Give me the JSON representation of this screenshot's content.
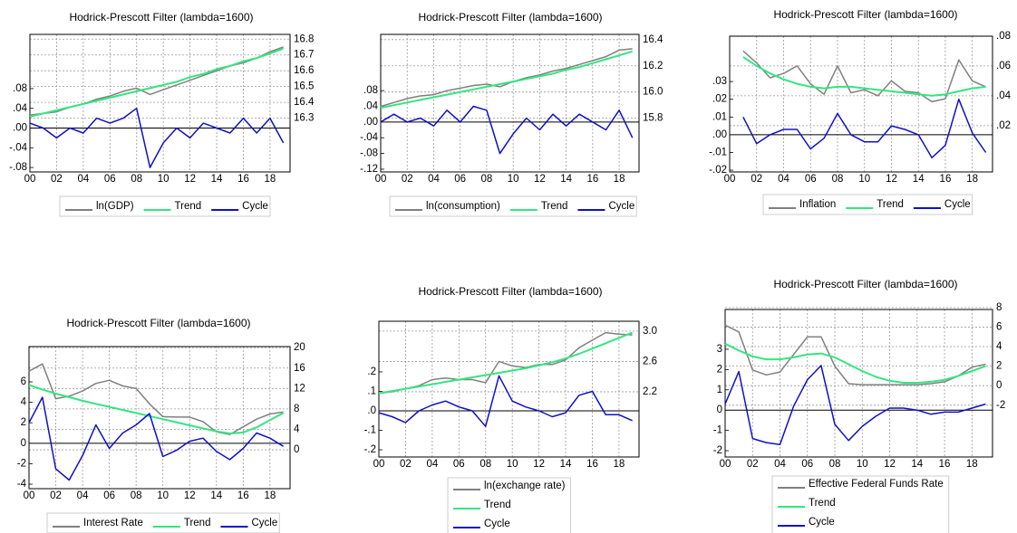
{
  "chart_data": [
    {
      "type": "line",
      "title": "Hodrick-Prescott Filter (lambda=1600)",
      "x": [
        0,
        1,
        2,
        3,
        4,
        5,
        6,
        7,
        8,
        9,
        10,
        11,
        12,
        13,
        14,
        15,
        16,
        17,
        18,
        19
      ],
      "xlim": [
        0,
        19.5
      ],
      "xticks": [
        {
          "value": 0,
          "label": "00"
        },
        {
          "value": 2,
          "label": "02"
        },
        {
          "value": 4,
          "label": "04"
        },
        {
          "value": 6,
          "label": "06"
        },
        {
          "value": 8,
          "label": "08"
        },
        {
          "value": 10,
          "label": "10"
        },
        {
          "value": 12,
          "label": "12"
        },
        {
          "value": 14,
          "label": "14"
        },
        {
          "value": 16,
          "label": "16"
        },
        {
          "value": 18,
          "label": "18"
        }
      ],
      "ylim": [
        -0.089,
        0.19
      ],
      "yticks": [
        {
          "value": 0.08,
          "label": ".08"
        },
        {
          "value": 0.04,
          "label": ".04"
        },
        {
          "value": 0,
          "label": ".00"
        },
        {
          "value": -0.04,
          "label": "-.04"
        },
        {
          "value": -0.08,
          "label": "-.08"
        }
      ],
      "y2lim": [
        15.96,
        16.83
      ],
      "y2ticks": [
        16.8,
        16.7,
        16.6,
        16.5,
        16.4,
        16.3
      ],
      "series": [
        {
          "name": "ln(GDP)",
          "color": "#808080",
          "axis": "y2",
          "values": [
            16.32,
            16.33,
            16.34,
            16.37,
            16.39,
            16.42,
            16.44,
            16.47,
            16.49,
            16.45,
            16.48,
            16.51,
            16.54,
            16.57,
            16.6,
            16.63,
            16.65,
            16.68,
            16.72,
            16.75
          ]
        },
        {
          "name": "Trend",
          "color": "#33e680",
          "axis": "y2",
          "values": [
            16.31,
            16.33,
            16.35,
            16.37,
            16.39,
            16.41,
            16.43,
            16.45,
            16.47,
            16.49,
            16.51,
            16.53,
            16.56,
            16.58,
            16.61,
            16.63,
            16.66,
            16.68,
            16.71,
            16.74
          ]
        },
        {
          "name": "Cycle",
          "color": "#1010c8",
          "axis": "y",
          "values": [
            0.01,
            0,
            -0.02,
            0,
            -0.01,
            0.02,
            0.01,
            0.02,
            0.04,
            -0.08,
            -0.03,
            0,
            -0.02,
            0.01,
            0,
            -0.01,
            0.02,
            -0.01,
            0.02,
            -0.03
          ]
        }
      ]
    },
    {
      "type": "line",
      "title": "Hodrick-Prescott Filter (lambda=1600)",
      "x": [
        0,
        1,
        2,
        3,
        4,
        5,
        6,
        7,
        8,
        9,
        10,
        11,
        12,
        13,
        14,
        15,
        16,
        17,
        18,
        19
      ],
      "xlim": [
        0,
        19.5
      ],
      "xticks": [
        {
          "value": 0,
          "label": "00"
        },
        {
          "value": 2,
          "label": "02"
        },
        {
          "value": 4,
          "label": "04"
        },
        {
          "value": 6,
          "label": "06"
        },
        {
          "value": 8,
          "label": "08"
        },
        {
          "value": 10,
          "label": "10"
        },
        {
          "value": 12,
          "label": "12"
        },
        {
          "value": 14,
          "label": "14"
        },
        {
          "value": 16,
          "label": "16"
        },
        {
          "value": 18,
          "label": "18"
        }
      ],
      "ylim": [
        -0.127,
        0.223
      ],
      "yticks": [
        {
          "value": 0.08,
          "label": ".08"
        },
        {
          "value": 0.04,
          "label": ".04"
        },
        {
          "value": 0,
          "label": ".00"
        },
        {
          "value": -0.04,
          "label": "-.04"
        },
        {
          "value": -0.08,
          "label": "-.08"
        },
        {
          "value": -0.12,
          "label": "-.12"
        }
      ],
      "y2lim": [
        15.39,
        16.44
      ],
      "y2ticks": [
        16.4,
        16.2,
        {
          "value": 16,
          "label": "16.0"
        },
        15.8
      ],
      "series": [
        {
          "name": "ln(consumption)",
          "color": "#808080",
          "axis": "y2",
          "values": [
            15.89,
            15.92,
            15.95,
            15.97,
            15.98,
            16.01,
            16.03,
            16.05,
            16.06,
            16.04,
            16.08,
            16.11,
            16.13,
            16.16,
            16.18,
            16.21,
            16.24,
            16.27,
            16.32,
            16.33
          ]
        },
        {
          "name": "Trend",
          "color": "#33e680",
          "axis": "y2",
          "values": [
            15.88,
            15.9,
            15.92,
            15.94,
            15.96,
            15.98,
            16,
            16.02,
            16.04,
            16.06,
            16.08,
            16.1,
            16.12,
            16.14,
            16.17,
            16.19,
            16.22,
            16.25,
            16.28,
            16.31
          ]
        },
        {
          "name": "Cycle",
          "color": "#1010c8",
          "axis": "y",
          "values": [
            0,
            0.02,
            0,
            0.01,
            -0.01,
            0.03,
            0,
            0.04,
            0.03,
            -0.08,
            -0.03,
            0.01,
            -0.02,
            0.02,
            -0.01,
            0.02,
            0,
            -0.02,
            0.03,
            -0.04
          ]
        }
      ]
    },
    {
      "type": "line",
      "title": "Hodrick-Prescott Filter (lambda=1600)",
      "x": [
        0,
        1,
        2,
        3,
        4,
        5,
        6,
        7,
        8,
        9,
        10,
        11,
        12,
        13,
        14,
        15,
        16,
        17,
        18,
        19
      ],
      "xlim": [
        0,
        19.5
      ],
      "xticks": [
        {
          "value": 0,
          "label": "00"
        },
        {
          "value": 2,
          "label": "02"
        },
        {
          "value": 4,
          "label": "04"
        },
        {
          "value": 6,
          "label": "06"
        },
        {
          "value": 8,
          "label": "08"
        },
        {
          "value": 10,
          "label": "10"
        },
        {
          "value": 12,
          "label": "12"
        },
        {
          "value": 14,
          "label": "14"
        },
        {
          "value": 16,
          "label": "16"
        },
        {
          "value": 18,
          "label": "18"
        }
      ],
      "ylim": [
        -0.021,
        0.0556
      ],
      "yticks": [
        {
          "value": 0.03,
          "label": ".03"
        },
        {
          "value": 0.02,
          "label": ".02"
        },
        {
          "value": 0.01,
          "label": ".01"
        },
        {
          "value": 0,
          "label": ".00"
        },
        {
          "value": -0.01,
          "label": "-.01"
        },
        {
          "value": -0.02,
          "label": "-.02"
        }
      ],
      "y2lim": [
        -0.011,
        0.0799
      ],
      "y2ticks": [
        {
          "value": 0.08,
          "label": ".08"
        },
        {
          "value": 0.06,
          "label": ".06"
        },
        {
          "value": 0.04,
          "label": ".04"
        },
        {
          "value": 0.02,
          "label": ".02"
        }
      ],
      "series": [
        {
          "name": "Inflation",
          "color": "#808080",
          "axis": "y2",
          "values": [
            null,
            0.07,
            0.062,
            0.052,
            0.055,
            0.06,
            0.048,
            0.041,
            0.06,
            0.042,
            0.044,
            0.04,
            0.05,
            0.043,
            0.042,
            0.036,
            0.038,
            0.064,
            0.05,
            0.046
          ]
        },
        {
          "name": "Trend",
          "color": "#33e680",
          "axis": "y2",
          "values": [
            null,
            0.066,
            0.06,
            0.055,
            0.051,
            0.048,
            0.046,
            0.045,
            0.046,
            0.046,
            0.045,
            0.044,
            0.043,
            0.042,
            0.041,
            0.04,
            0.041,
            0.043,
            0.045,
            0.046
          ]
        },
        {
          "name": "Cycle",
          "color": "#1010c8",
          "axis": "y",
          "values": [
            null,
            0.01,
            -0.005,
            0,
            0.003,
            0.003,
            -0.008,
            -0.002,
            0.012,
            0,
            -0.004,
            -0.004,
            0.005,
            0.003,
            0,
            -0.013,
            -0.006,
            0.02,
            0.001,
            -0.01
          ]
        }
      ]
    },
    {
      "type": "line",
      "title": "Hodrick-Prescott Filter (lambda=1600)",
      "x": [
        0,
        1,
        2,
        3,
        4,
        5,
        6,
        7,
        8,
        9,
        10,
        11,
        12,
        13,
        14,
        15,
        16,
        17,
        18,
        19
      ],
      "xlim": [
        0,
        19.5
      ],
      "xticks": [
        {
          "value": 0,
          "label": "00"
        },
        {
          "value": 2,
          "label": "02"
        },
        {
          "value": 4,
          "label": "04"
        },
        {
          "value": 6,
          "label": "06"
        },
        {
          "value": 8,
          "label": "08"
        },
        {
          "value": 10,
          "label": "10"
        },
        {
          "value": 12,
          "label": "12"
        },
        {
          "value": 14,
          "label": "14"
        },
        {
          "value": 16,
          "label": "16"
        },
        {
          "value": 18,
          "label": "18"
        }
      ],
      "ylim": [
        -4.44,
        9.45
      ],
      "yticks": [
        6,
        4,
        2,
        0,
        -2,
        -4
      ],
      "y2lim": [
        -7.6,
        20.2
      ],
      "y2ticks": [
        20,
        16,
        12,
        8,
        4,
        0
      ],
      "series": [
        {
          "name": "Interest Rate",
          "color": "#808080",
          "axis": "y2",
          "values": [
            15.4,
            16.8,
            10,
            10.5,
            11.5,
            13,
            13.6,
            12.5,
            12,
            9,
            6.5,
            6.4,
            6.4,
            5.5,
            3.5,
            3,
            4.5,
            6,
            7,
            7.4
          ]
        },
        {
          "name": "Trend",
          "color": "#33e680",
          "axis": "y2",
          "values": [
            12.7,
            11.8,
            11,
            10.3,
            9.6,
            9,
            8.4,
            7.8,
            7.2,
            6.6,
            6,
            5.4,
            4.8,
            4.2,
            3.6,
            3.2,
            3.4,
            4.4,
            5.8,
            7.2
          ]
        },
        {
          "name": "Cycle",
          "color": "#1010c8",
          "axis": "y",
          "values": [
            2,
            4.5,
            -2.5,
            -3.6,
            -1.2,
            1.8,
            -0.5,
            1,
            1.8,
            2.9,
            -1.3,
            -0.7,
            0.2,
            0.5,
            -0.8,
            -1.6,
            -0.5,
            1,
            0.5,
            -0.3
          ]
        }
      ]
    },
    {
      "type": "line",
      "title": "Hodrick-Prescott Filter (lambda=1600)",
      "x": [
        0,
        1,
        2,
        3,
        4,
        5,
        6,
        7,
        8,
        9,
        10,
        11,
        12,
        13,
        14,
        15,
        16,
        17,
        18,
        19
      ],
      "xlim": [
        0,
        19.5
      ],
      "xticks": [
        {
          "value": 0,
          "label": "00"
        },
        {
          "value": 2,
          "label": "02"
        },
        {
          "value": 4,
          "label": "04"
        },
        {
          "value": 6,
          "label": "06"
        },
        {
          "value": 8,
          "label": "08"
        },
        {
          "value": 10,
          "label": "10"
        },
        {
          "value": 12,
          "label": "12"
        },
        {
          "value": 14,
          "label": "14"
        },
        {
          "value": 16,
          "label": "16"
        },
        {
          "value": 18,
          "label": "18"
        }
      ],
      "ylim": [
        -0.237,
        0.46
      ],
      "yticks": [
        {
          "value": 0.2,
          "label": ".2"
        },
        {
          "value": 0.1,
          "label": ".1"
        },
        {
          "value": 0,
          "label": ".0"
        },
        {
          "value": -0.1,
          "label": "-.1"
        },
        {
          "value": -0.2,
          "label": "-.2"
        }
      ],
      "y2lim": [
        1.34,
        3.13
      ],
      "y2ticks": [
        {
          "value": 3,
          "label": "3.0"
        },
        2.6,
        2.2
      ],
      "series": [
        {
          "name": "ln(exchange rate)",
          "color": "#808080",
          "axis": "y2",
          "values": [
            2.18,
            2.2,
            2.24,
            2.28,
            2.36,
            2.38,
            2.36,
            2.36,
            2.32,
            2.6,
            2.54,
            2.52,
            2.56,
            2.56,
            2.62,
            2.78,
            2.88,
            2.98,
            2.96,
            2.95
          ]
        },
        {
          "name": "Trend",
          "color": "#33e680",
          "axis": "y2",
          "values": [
            2.18,
            2.21,
            2.24,
            2.27,
            2.3,
            2.33,
            2.36,
            2.39,
            2.42,
            2.45,
            2.48,
            2.51,
            2.55,
            2.59,
            2.64,
            2.7,
            2.77,
            2.84,
            2.91,
            2.98
          ]
        },
        {
          "name": "Cycle",
          "color": "#1010c8",
          "axis": "y",
          "values": [
            -0.01,
            -0.03,
            -0.06,
            0,
            0.03,
            0.05,
            0.02,
            0,
            -0.08,
            0.18,
            0.05,
            0.02,
            0,
            -0.03,
            -0.01,
            0.08,
            0.1,
            -0.02,
            -0.02,
            -0.05
          ]
        }
      ]
    },
    {
      "type": "line",
      "title": "Hodrick-Prescott Filter (lambda=1600)",
      "x": [
        0,
        1,
        2,
        3,
        4,
        5,
        6,
        7,
        8,
        9,
        10,
        11,
        12,
        13,
        14,
        15,
        16,
        17,
        18,
        19
      ],
      "xlim": [
        0,
        19.5
      ],
      "xticks": [
        {
          "value": 0,
          "label": "00"
        },
        {
          "value": 2,
          "label": "02"
        },
        {
          "value": 4,
          "label": "04"
        },
        {
          "value": 6,
          "label": "06"
        },
        {
          "value": 8,
          "label": "08"
        },
        {
          "value": 10,
          "label": "10"
        },
        {
          "value": 12,
          "label": "12"
        },
        {
          "value": 14,
          "label": "14"
        },
        {
          "value": 16,
          "label": "16"
        },
        {
          "value": 18,
          "label": "18"
        }
      ],
      "ylim": [
        -2.31,
        4.96
      ],
      "yticks": [
        3,
        2,
        1,
        0,
        -1,
        -2
      ],
      "y2lim": [
        -7.3,
        7.8
      ],
      "y2ticks": [
        8,
        6,
        4,
        2,
        0,
        -2
      ],
      "series": [
        {
          "name": "Effective Federal Funds Rate",
          "color": "#808080",
          "axis": "y2",
          "values": [
            6.2,
            5.5,
            1.6,
            1.1,
            1.4,
            3.2,
            5,
            5,
            2,
            0.2,
            0.1,
            0.1,
            0.1,
            0.1,
            0.1,
            0.2,
            0.4,
            1,
            1.9,
            2.2
          ]
        },
        {
          "name": "Trend",
          "color": "#33e680",
          "axis": "y2",
          "values": [
            4.3,
            3.6,
            3,
            2.7,
            2.7,
            2.9,
            3.2,
            3.3,
            2.9,
            2.2,
            1.5,
            0.9,
            0.5,
            0.3,
            0.3,
            0.4,
            0.6,
            1,
            1.5,
            2
          ]
        },
        {
          "name": "Cycle",
          "color": "#1010c8",
          "axis": "y",
          "values": [
            0.3,
            1.9,
            -1.4,
            -1.6,
            -1.7,
            0.2,
            1.5,
            2.2,
            -0.7,
            -1.5,
            -0.8,
            -0.3,
            0.1,
            0.1,
            0,
            -0.2,
            -0.1,
            -0.1,
            0.1,
            0.3
          ]
        }
      ]
    }
  ]
}
